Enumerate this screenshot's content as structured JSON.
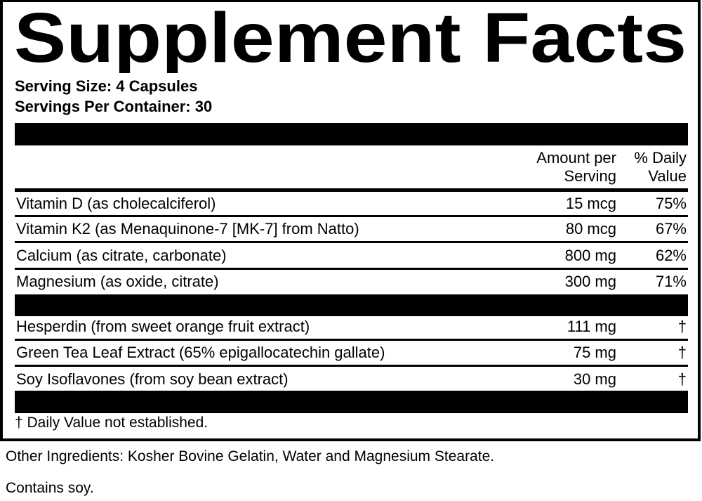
{
  "title": "Supplement Facts",
  "serving_size": "Serving Size: 4 Capsules",
  "servings_per_container": "Servings Per Container: 30",
  "headers": {
    "amount": [
      "Amount per",
      "Serving"
    ],
    "dv": [
      "% Daily",
      "Value"
    ]
  },
  "nutrients": [
    {
      "name": "Vitamin D (as cholecalciferol)",
      "amount": "15 mcg",
      "dv": "75%"
    },
    {
      "name": "Vitamin K2 (as Menaquinone-7 [MK-7] from Natto)",
      "amount": "80 mcg",
      "dv": "67%"
    },
    {
      "name": "Calcium (as citrate, carbonate)",
      "amount": "800 mg",
      "dv": "62%"
    },
    {
      "name": "Magnesium (as oxide, citrate)",
      "amount": "300 mg",
      "dv": "71%"
    }
  ],
  "other": [
    {
      "name": "Hesperdin (from sweet orange fruit extract)",
      "amount": "111 mg",
      "dv": "†"
    },
    {
      "name": "Green Tea Leaf Extract (65% epigallocatechin gallate)",
      "amount": "75 mg",
      "dv": "†"
    },
    {
      "name": "Soy Isoflavones (from soy bean extract)",
      "amount": "30 mg",
      "dv": "†"
    }
  ],
  "footnote": "† Daily Value not established.",
  "other_ingredients": "Other Ingredients: Kosher Bovine Gelatin, Water and Magnesium Stearate.",
  "contains": "Contains soy."
}
